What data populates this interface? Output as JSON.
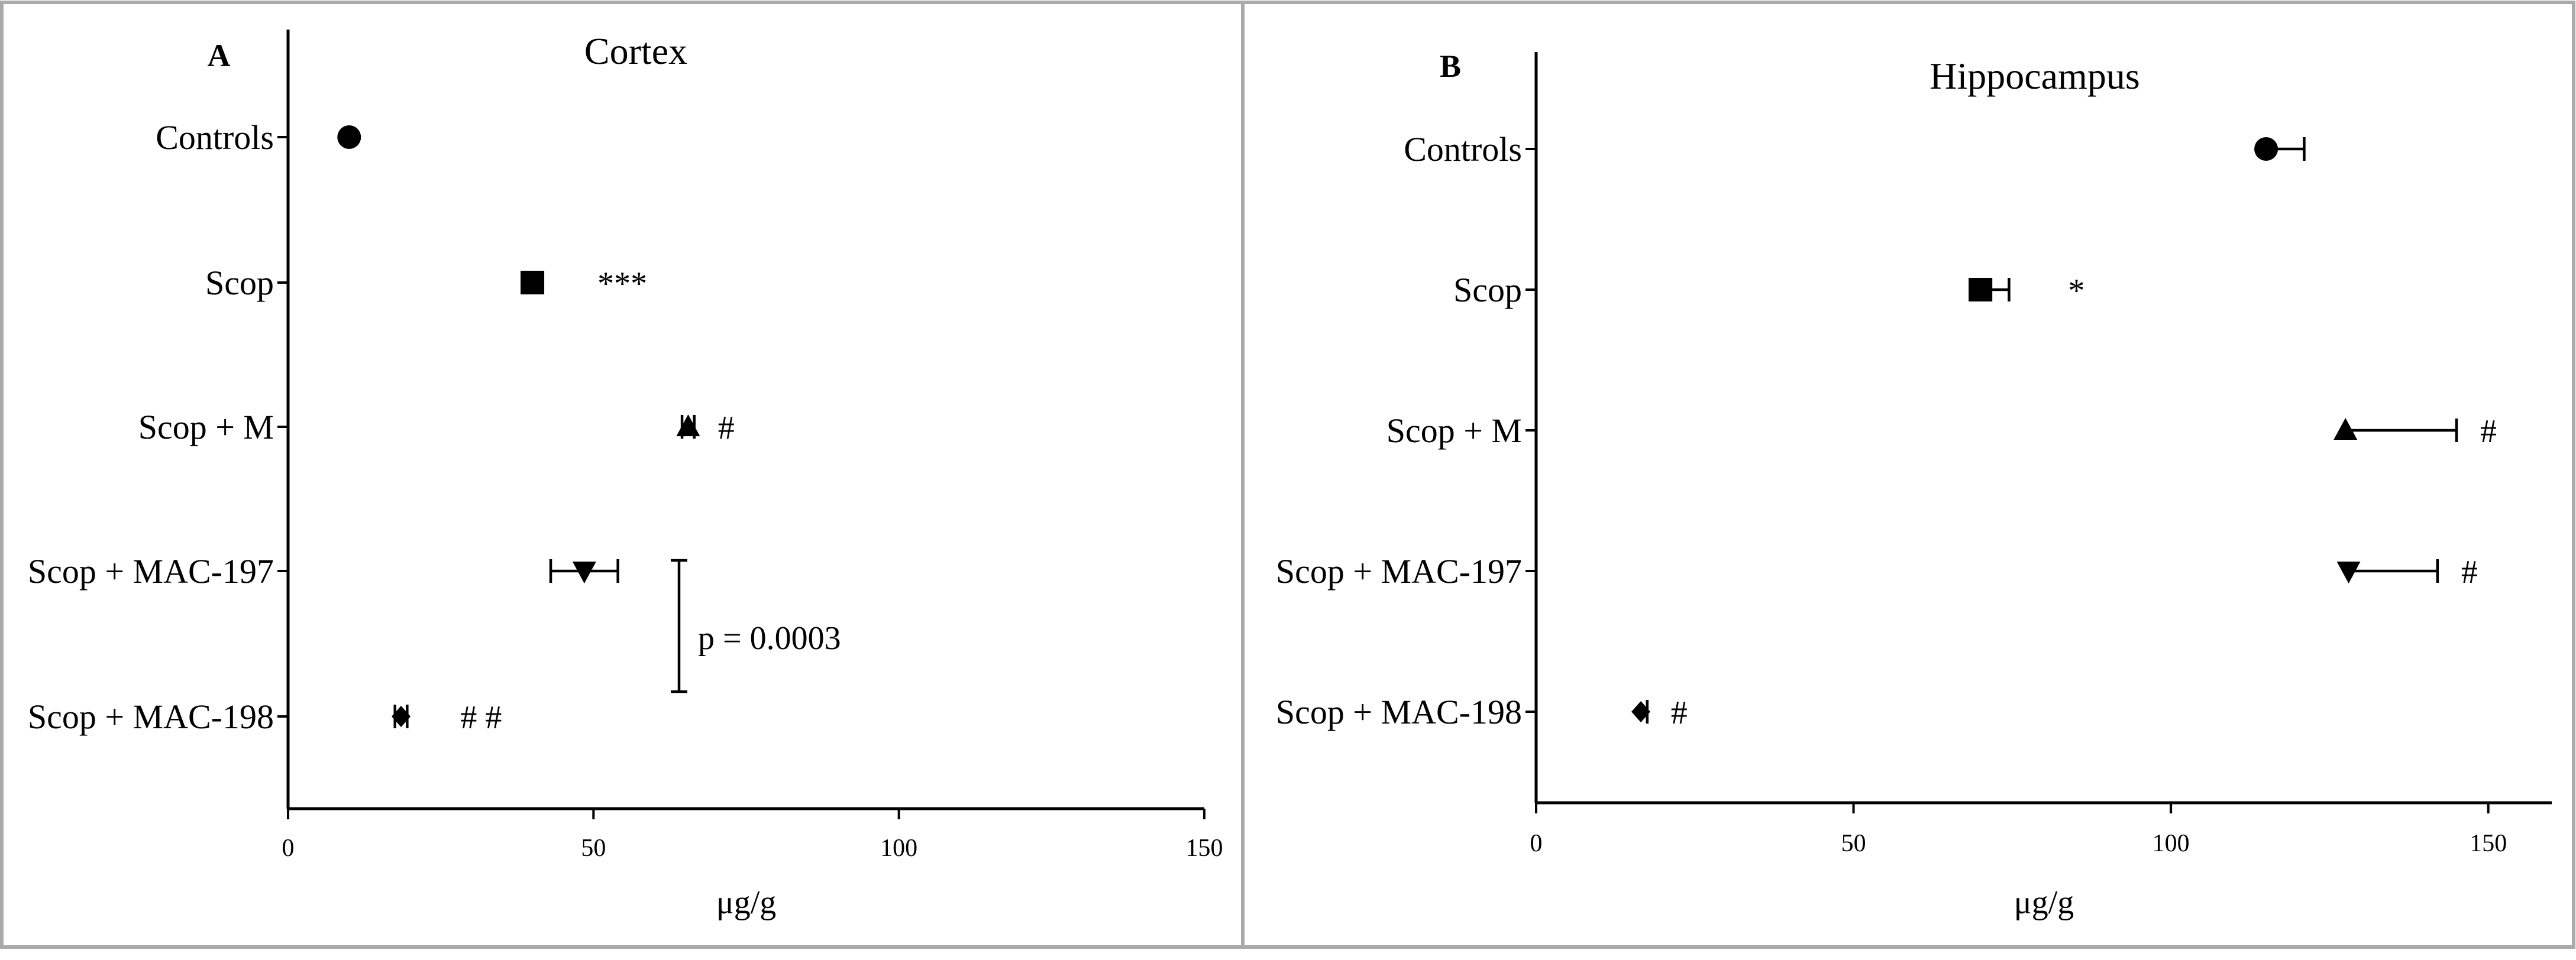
{
  "chart_data": [
    {
      "type": "scatter",
      "panel_label": "A",
      "title": "Cortex",
      "xlabel": "μg/g",
      "xlim": [
        0,
        150
      ],
      "xticks": [
        0,
        50,
        100,
        150
      ],
      "categories": [
        "Controls",
        "Scop",
        "Scop + M",
        "Scop + MAC-197",
        "Scop + MAC-198"
      ],
      "markers": [
        "circle",
        "square",
        "triangle-up",
        "triangle-down",
        "diamond"
      ],
      "values": [
        10,
        40,
        65.5,
        48.5,
        18.5
      ],
      "errors": [
        0,
        0,
        1,
        5.5,
        1
      ],
      "significance": [
        "",
        "***",
        "#",
        "",
        "# #"
      ],
      "annotation": {
        "text": "p = 0.0003",
        "between": [
          "Scop + MAC-197",
          "Scop + MAC-198"
        ]
      }
    },
    {
      "type": "scatter",
      "panel_label": "B",
      "title": "Hippocampus",
      "xlabel": "μg/g",
      "xlim": [
        0,
        160
      ],
      "xticks": [
        0,
        50,
        100,
        150
      ],
      "categories": [
        "Controls",
        "Scop",
        "Scop + M",
        "Scop + MAC-197",
        "Scop + MAC-198"
      ],
      "markers": [
        "circle",
        "square",
        "triangle-up",
        "triangle-down",
        "diamond"
      ],
      "values": [
        115,
        70,
        127.5,
        128,
        16.5
      ],
      "errors": [
        6,
        4.5,
        17.5,
        14,
        1
      ],
      "significance": [
        "",
        "*",
        "#",
        "#",
        "#"
      ]
    }
  ]
}
